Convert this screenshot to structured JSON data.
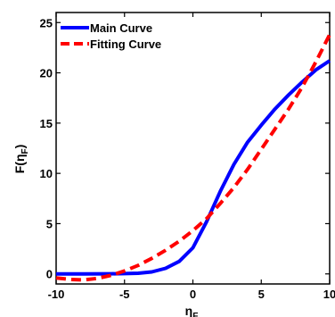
{
  "chart_data": {
    "type": "line",
    "xlabel": "η",
    "xlabel_sub": "F",
    "ylabel_main": "F(η",
    "ylabel_sub": "F",
    "ylabel_close": ")",
    "xlim": [
      -10,
      10
    ],
    "ylim": [
      -1,
      26
    ],
    "xticks": [
      -10,
      -5,
      0,
      5,
      10
    ],
    "xtick_labels": [
      "-10",
      "-5",
      "0",
      "5",
      "10"
    ],
    "yticks": [
      0,
      5,
      10,
      15,
      20,
      25
    ],
    "ytick_labels": [
      "0",
      "5",
      "10",
      "15",
      "20",
      "25"
    ],
    "grid": false,
    "legend_position": "top-left",
    "series": [
      {
        "name": "Main Curve",
        "color": "#0000ff",
        "dash": "solid",
        "x": [
          -10,
          -8,
          -6,
          -5,
          -4,
          -3,
          -2,
          -1,
          0,
          1,
          2,
          3,
          4,
          5,
          6,
          7,
          8,
          9,
          10
        ],
        "y": [
          0,
          0,
          0.01,
          0.03,
          0.07,
          0.2,
          0.55,
          1.25,
          2.6,
          5.2,
          8.2,
          10.9,
          13.1,
          14.8,
          16.4,
          17.8,
          19.1,
          20.3,
          21.2
        ]
      },
      {
        "name": "Fitting Curve",
        "color": "#ff0000",
        "dash": "dashed",
        "x": [
          -10,
          -9,
          -8,
          -7,
          -6,
          -5,
          -4,
          -3,
          -2,
          -1,
          0,
          1,
          2,
          3,
          4,
          5,
          6,
          7,
          8,
          9,
          10
        ],
        "y": [
          -0.4,
          -0.55,
          -0.6,
          -0.45,
          -0.15,
          0.3,
          0.85,
          1.55,
          2.35,
          3.25,
          4.3,
          5.5,
          7.0,
          8.6,
          10.4,
          12.4,
          14.4,
          16.4,
          18.6,
          21.1,
          23.8
        ]
      }
    ]
  }
}
